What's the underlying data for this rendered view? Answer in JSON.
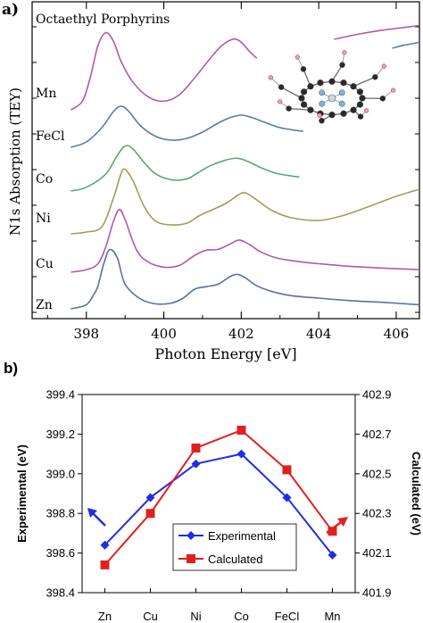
{
  "chart_data": [
    {
      "type": "line",
      "panel_label": "a)",
      "annotation": "Octaethyl Porphyrins",
      "xlabel": "Photon Energy  [eV]",
      "ylabel": "N1s  Absorption  (TEY)",
      "xlim": [
        396.6,
        406.6
      ],
      "xticks": [
        398,
        400,
        402,
        404,
        406
      ],
      "grid": false,
      "series": [
        {
          "name": "Zn",
          "color": "#5a6fa8",
          "x": [
            397.6,
            398.0,
            398.2,
            398.3,
            398.45,
            398.6,
            398.8,
            399.0,
            399.4,
            399.8,
            400.2,
            400.5,
            400.8,
            401.1,
            401.4,
            401.7,
            401.9,
            402.1,
            402.4,
            402.8,
            403.3,
            404.0,
            404.8,
            405.6,
            406.6
          ],
          "y": [
            0.0,
            0.05,
            0.18,
            0.28,
            0.55,
            0.72,
            0.62,
            0.3,
            0.12,
            0.06,
            0.07,
            0.13,
            0.24,
            0.27,
            0.3,
            0.39,
            0.42,
            0.38,
            0.28,
            0.21,
            0.16,
            0.13,
            0.1,
            0.08,
            0.05
          ]
        },
        {
          "name": "Cu",
          "color": "#b05aa8",
          "x": [
            397.6,
            398.0,
            398.3,
            398.5,
            398.7,
            398.85,
            399.0,
            399.3,
            399.6,
            400.0,
            400.4,
            400.8,
            401.1,
            401.4,
            401.7,
            401.95,
            402.2,
            402.5,
            402.9,
            403.4,
            404.0,
            404.8,
            405.6,
            406.6
          ],
          "y": [
            0.0,
            0.03,
            0.1,
            0.3,
            0.6,
            0.74,
            0.62,
            0.26,
            0.12,
            0.06,
            0.08,
            0.2,
            0.26,
            0.27,
            0.33,
            0.38,
            0.33,
            0.24,
            0.17,
            0.13,
            0.1,
            0.07,
            0.05,
            0.03
          ]
        },
        {
          "name": "Ni",
          "color": "#a89a55",
          "x": [
            397.6,
            398.0,
            398.4,
            398.7,
            398.9,
            399.0,
            399.2,
            399.5,
            399.8,
            400.2,
            400.6,
            400.9,
            401.2,
            401.6,
            401.9,
            402.1,
            402.4,
            402.8,
            403.3,
            404.0,
            404.5,
            405.0,
            405.5,
            406.0,
            406.6
          ],
          "y": [
            0.0,
            0.02,
            0.08,
            0.4,
            0.68,
            0.72,
            0.6,
            0.3,
            0.14,
            0.1,
            0.12,
            0.2,
            0.26,
            0.34,
            0.43,
            0.46,
            0.38,
            0.26,
            0.18,
            0.15,
            0.19,
            0.26,
            0.34,
            0.42,
            0.5
          ]
        },
        {
          "name": "Co",
          "color": "#5aa87a",
          "x": [
            397.6,
            398.0,
            398.5,
            398.8,
            399.0,
            399.2,
            399.5,
            399.8,
            400.2,
            400.6,
            400.9,
            401.2,
            401.6,
            401.9,
            402.2,
            402.5,
            402.9,
            403.3,
            403.5
          ],
          "y": [
            0.0,
            0.04,
            0.18,
            0.38,
            0.48,
            0.45,
            0.3,
            0.18,
            0.12,
            0.13,
            0.2,
            0.27,
            0.33,
            0.35,
            0.31,
            0.25,
            0.19,
            0.16,
            0.15
          ]
        },
        {
          "name": "FeCl",
          "color": "#5a7ab0",
          "x": [
            397.6,
            398.0,
            398.4,
            398.7,
            398.9,
            399.1,
            399.4,
            399.8,
            400.2,
            400.6,
            401.0,
            401.4,
            401.7,
            402.0,
            402.3,
            402.6,
            403.0,
            403.4,
            403.6
          ],
          "y": [
            0.0,
            0.06,
            0.22,
            0.4,
            0.46,
            0.4,
            0.24,
            0.12,
            0.08,
            0.1,
            0.17,
            0.27,
            0.33,
            0.36,
            0.33,
            0.28,
            0.22,
            0.19,
            0.18
          ]
        },
        {
          "name": "Mn",
          "color": "#b05aa8",
          "x": [
            397.6,
            397.9,
            398.1,
            398.3,
            398.5,
            398.7,
            398.9,
            399.2,
            399.6,
            400.0,
            400.4,
            400.8,
            401.2,
            401.5,
            401.8,
            402.0,
            402.2,
            402.4
          ],
          "y": [
            0.0,
            0.08,
            0.3,
            0.6,
            0.72,
            0.64,
            0.45,
            0.26,
            0.12,
            0.08,
            0.14,
            0.3,
            0.48,
            0.6,
            0.66,
            0.63,
            0.55,
            0.48
          ]
        }
      ],
      "right_segments": [
        {
          "color": "#b05aa8",
          "x": [
            404.4,
            405.0,
            405.6,
            406.2,
            406.6
          ],
          "y": [
            0.0,
            0.05,
            0.09,
            0.12,
            0.14
          ]
        },
        {
          "color": "#5a7ab0",
          "x": [
            405.9,
            406.2,
            406.6
          ],
          "y": [
            0.0,
            0.03,
            0.06
          ]
        }
      ]
    },
    {
      "type": "line",
      "panel_label": "b)",
      "categories": [
        "Zn",
        "Cu",
        "Ni",
        "Co",
        "FeCl",
        "Mn"
      ],
      "ylabel": "Experimental (eV)",
      "ylabel_right": "Calculated (eV)",
      "ylim": [
        398.4,
        399.4
      ],
      "yticks": [
        "398.4",
        "398.6",
        "398.8",
        "399.0",
        "399.2",
        "399.4"
      ],
      "ylim_right": [
        401.9,
        402.9
      ],
      "yticks_right": [
        "401.9",
        "402.1",
        "402.3",
        "402.5",
        "402.7",
        "402.9"
      ],
      "legend_position": "bottom-center",
      "grid": false,
      "series": [
        {
          "name": "Experimental",
          "axis": "left",
          "color": "#1f2fe0",
          "marker": "diamond",
          "values": [
            398.64,
            398.88,
            399.05,
            399.1,
            398.88,
            398.59
          ]
        },
        {
          "name": "Calculated",
          "axis": "right",
          "color": "#e02020",
          "marker": "square",
          "values": [
            402.04,
            402.3,
            402.63,
            402.72,
            402.52,
            402.21
          ]
        }
      ]
    }
  ]
}
